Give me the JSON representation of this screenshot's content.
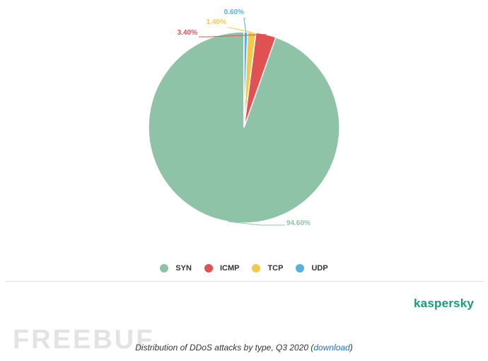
{
  "chart_data": {
    "type": "pie",
    "categories": [
      "SYN",
      "ICMP",
      "TCP",
      "UDP"
    ],
    "values": [
      94.6,
      3.4,
      1.4,
      0.6
    ],
    "value_labels": [
      "94.60%",
      "3.40%",
      "1.40%",
      "0.60%"
    ],
    "colors": [
      "#8fc3a8",
      "#e05252",
      "#f2c94c",
      "#56b0e0"
    ],
    "title": "",
    "legend_position": "bottom"
  },
  "brand": {
    "name": "kaspersky"
  },
  "watermark": {
    "text": "FREEBUF"
  },
  "caption": {
    "prefix": "Distribution of DDoS attacks by type, Q3 2020 (",
    "link": "download",
    "suffix": ")"
  }
}
